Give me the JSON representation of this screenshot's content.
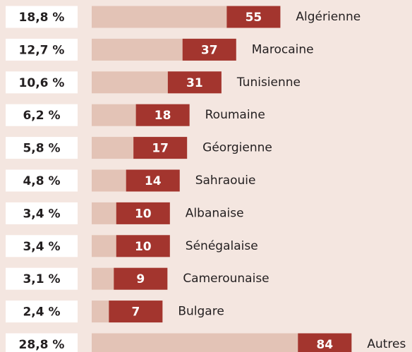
{
  "chart_data": {
    "type": "bar",
    "categories": [
      "Algérienne",
      "Marocaine",
      "Tunisienne",
      "Roumaine",
      "Géorgienne",
      "Sahraouie",
      "Albanaise",
      "Sénégalaise",
      "Camerounaise",
      "Bulgare",
      "Autres"
    ],
    "values": [
      55,
      37,
      31,
      18,
      17,
      14,
      10,
      10,
      9,
      7,
      84
    ],
    "shares": [
      {
        "value": 18.8,
        "label": "18,8 %"
      },
      {
        "value": 12.7,
        "label": "12,7 %"
      },
      {
        "value": 10.6,
        "label": "10,6 %"
      },
      {
        "value": 6.2,
        "label": "6,2 %"
      },
      {
        "value": 5.8,
        "label": "5,8 %"
      },
      {
        "value": 4.8,
        "label": "4,8 %"
      },
      {
        "value": 3.4,
        "label": "3,4 %"
      },
      {
        "value": 3.4,
        "label": "3,4 %"
      },
      {
        "value": 3.1,
        "label": "3,1 %"
      },
      {
        "value": 2.4,
        "label": "2,4 %"
      },
      {
        "value": 28.8,
        "label": "28,8 %"
      }
    ],
    "color": "#a3352e",
    "track_color": "#e3c3b6"
  }
}
